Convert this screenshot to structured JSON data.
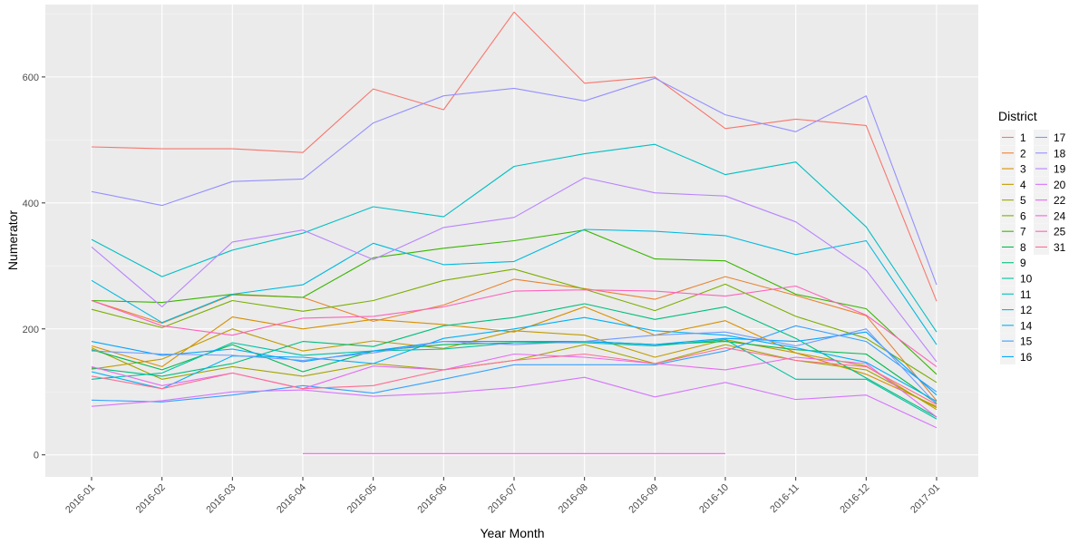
{
  "chart_data": {
    "type": "line",
    "title": "",
    "xlabel": "Year Month",
    "ylabel": "Numerator",
    "ylim": [
      -35,
      715
    ],
    "yticks": [
      0,
      200,
      400,
      600
    ],
    "categories": [
      "2016-01",
      "2016-02",
      "2016-03",
      "2016-04",
      "2016-05",
      "2016-06",
      "2016-07",
      "2016-08",
      "2016-09",
      "2016-10",
      "2016-11",
      "2016-12",
      "2017-01"
    ],
    "grid": true,
    "legend_title": "District",
    "legend_position": "right",
    "series": [
      {
        "name": "1",
        "color": "#F8766D",
        "values": [
          489,
          486,
          486,
          480,
          581,
          548,
          703,
          590,
          600,
          518,
          533,
          523,
          244
        ]
      },
      {
        "name": "2",
        "color": "#EA8331",
        "values": [
          245,
          209,
          254,
          250,
          212,
          238,
          279,
          264,
          247,
          283,
          253,
          221,
          86
        ]
      },
      {
        "name": "3",
        "color": "#D89000",
        "values": [
          173,
          140,
          219,
          200,
          215,
          207,
          195,
          235,
          190,
          213,
          162,
          128,
          77
        ]
      },
      {
        "name": "4",
        "color": "#C09B00",
        "values": [
          136,
          152,
          200,
          165,
          181,
          169,
          197,
          190,
          155,
          183,
          162,
          141,
          72
        ]
      },
      {
        "name": "5",
        "color": "#A3A500",
        "values": [
          170,
          120,
          140,
          125,
          145,
          135,
          150,
          175,
          145,
          175,
          150,
          135,
          75
        ]
      },
      {
        "name": "6",
        "color": "#7CAE00",
        "values": [
          231,
          202,
          245,
          228,
          245,
          277,
          295,
          263,
          229,
          271,
          220,
          185,
          115
        ]
      },
      {
        "name": "7",
        "color": "#39B600",
        "values": [
          245,
          242,
          255,
          250,
          313,
          328,
          340,
          357,
          311,
          308,
          255,
          232,
          128
        ]
      },
      {
        "name": "8",
        "color": "#00BB4E",
        "values": [
          167,
          135,
          175,
          132,
          165,
          175,
          178,
          180,
          175,
          180,
          167,
          160,
          82
        ]
      },
      {
        "name": "9",
        "color": "#00BF7D",
        "values": [
          138,
          125,
          145,
          180,
          172,
          205,
          218,
          240,
          215,
          235,
          185,
          122,
          60
        ]
      },
      {
        "name": "10",
        "color": "#00C1A3",
        "values": [
          120,
          130,
          178,
          158,
          165,
          168,
          178,
          178,
          173,
          183,
          120,
          120,
          57
        ]
      },
      {
        "name": "11",
        "color": "#00BFC4",
        "values": [
          342,
          283,
          325,
          352,
          394,
          378,
          458,
          478,
          493,
          445,
          465,
          362,
          195
        ]
      },
      {
        "name": "12",
        "color": "#00BAE0",
        "values": [
          277,
          210,
          255,
          270,
          336,
          302,
          307,
          358,
          355,
          348,
          318,
          340,
          175
        ]
      },
      {
        "name": "14",
        "color": "#00B0F6",
        "values": [
          132,
          105,
          157,
          155,
          145,
          185,
          200,
          218,
          197,
          190,
          170,
          147,
          85
        ]
      },
      {
        "name": "15",
        "color": "#35A2FF",
        "values": [
          87,
          84,
          95,
          110,
          98,
          120,
          143,
          143,
          143,
          165,
          205,
          180,
          100
        ]
      },
      {
        "name": "16",
        "color": "#00A5FF",
        "values": [
          180,
          158,
          168,
          148,
          165,
          180,
          180,
          180,
          175,
          185,
          180,
          195,
          95
        ]
      },
      {
        "name": "17",
        "color": "#6F9BFF",
        "values": [
          165,
          160,
          158,
          150,
          162,
          180,
          175,
          180,
          190,
          195,
          173,
          200,
          80
        ]
      },
      {
        "name": "18",
        "color": "#9590FF",
        "values": [
          418,
          396,
          434,
          438,
          527,
          570,
          582,
          562,
          598,
          540,
          513,
          570,
          270
        ]
      },
      {
        "name": "19",
        "color": "#B983FF",
        "values": [
          330,
          235,
          338,
          357,
          310,
          361,
          377,
          440,
          416,
          411,
          370,
          293,
          148
        ]
      },
      {
        "name": "20",
        "color": "#D575FE",
        "values": [
          77,
          86,
          100,
          103,
          93,
          98,
          107,
          123,
          92,
          115,
          88,
          95,
          43
        ]
      },
      {
        "name": "22",
        "color": "#E76BF3",
        "values": [
          140,
          110,
          130,
          105,
          141,
          135,
          160,
          155,
          145,
          135,
          155,
          145,
          60
        ]
      },
      {
        "name": "24",
        "color": "#F564E3",
        "values": [
          null,
          null,
          null,
          2,
          2,
          2,
          2,
          2,
          2,
          2,
          null,
          null,
          null
        ]
      },
      {
        "name": "25",
        "color": "#FF62BC",
        "values": [
          245,
          205,
          190,
          217,
          220,
          235,
          260,
          262,
          260,
          252,
          268,
          222,
          140
        ]
      },
      {
        "name": "31",
        "color": "#FF6C91",
        "values": [
          125,
          105,
          130,
          105,
          110,
          135,
          150,
          160,
          145,
          170,
          150,
          140,
          80
        ]
      }
    ]
  }
}
